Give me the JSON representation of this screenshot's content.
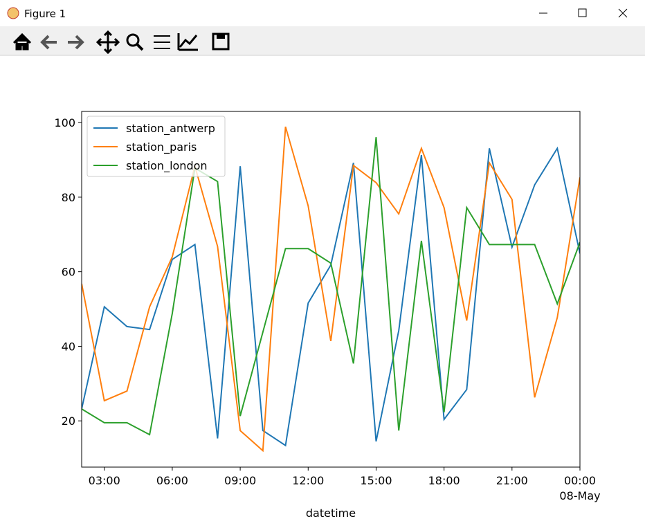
{
  "window": {
    "title": "Figure 1"
  },
  "chart_data": {
    "type": "line",
    "x_label": "datetime",
    "x": [
      2,
      3,
      4,
      5,
      6,
      7,
      8,
      9,
      10,
      11,
      12,
      13,
      14,
      15,
      16,
      17,
      18,
      19,
      20,
      21,
      22,
      23,
      24
    ],
    "xlim": [
      2,
      24
    ],
    "xticks": [
      {
        "value": 3,
        "label": "03:00"
      },
      {
        "value": 6,
        "label": "06:00"
      },
      {
        "value": 9,
        "label": "09:00"
      },
      {
        "value": 12,
        "label": "12:00"
      },
      {
        "value": 15,
        "label": "15:00"
      },
      {
        "value": 18,
        "label": "18:00"
      },
      {
        "value": 21,
        "label": "21:00"
      },
      {
        "value": 24,
        "label": "00:00\n08-May"
      }
    ],
    "ylim": [
      7.6,
      103
    ],
    "yticks": [
      20,
      40,
      60,
      80,
      100
    ],
    "legend": "upper left",
    "series": [
      {
        "name": "station_antwerp",
        "color": "#1f77b4",
        "values": [
          23.2,
          50.6,
          45.3,
          44.5,
          63.3,
          67.3,
          15.3,
          88.3,
          17.4,
          13.4,
          51.6,
          61.8,
          89.2,
          14.5,
          44.2,
          91.3,
          20.4,
          28.4,
          93.1,
          66.6,
          83.3,
          93.1,
          64.9
        ]
      },
      {
        "name": "station_paris",
        "color": "#ff7f0e",
        "values": [
          56.8,
          25.4,
          28,
          50.6,
          64,
          88.3,
          66.8,
          17.4,
          12,
          98.9,
          77.7,
          41.4,
          88.5,
          83.9,
          75.5,
          93.1,
          77.2,
          46.9,
          89.2,
          79.4,
          26.3,
          47.7,
          85.3
        ]
      },
      {
        "name": "station_london",
        "color": "#2ca02c",
        "values": [
          23.2,
          19.5,
          19.5,
          16.3,
          48.8,
          87.8,
          84.2,
          21.3,
          43.8,
          66.2,
          66.2,
          62.3,
          35.4,
          96.1,
          17.4,
          68.3,
          22.3,
          77.2,
          67.3,
          67.3,
          67.3,
          51.4,
          67.9
        ]
      }
    ]
  }
}
